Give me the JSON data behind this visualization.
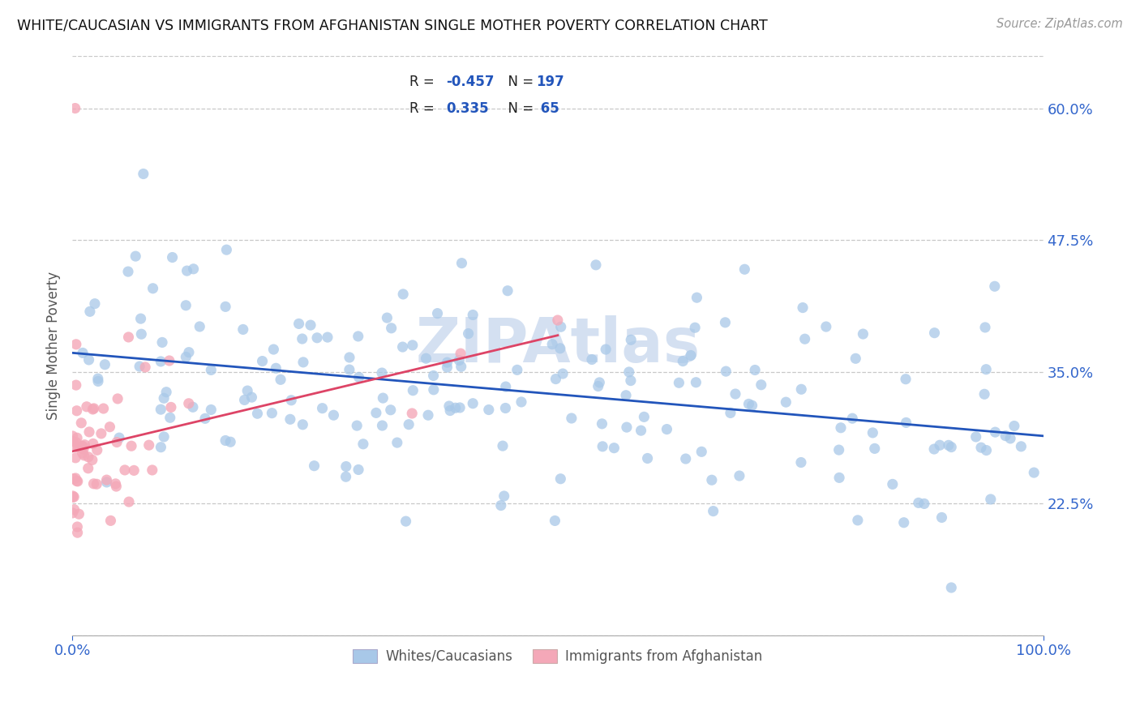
{
  "title": "WHITE/CAUCASIAN VS IMMIGRANTS FROM AFGHANISTAN SINGLE MOTHER POVERTY CORRELATION CHART",
  "source": "Source: ZipAtlas.com",
  "ylabel": "Single Mother Poverty",
  "xlim": [
    0.0,
    1.0
  ],
  "ylim": [
    0.1,
    0.65
  ],
  "yticks": [
    0.225,
    0.35,
    0.475,
    0.6
  ],
  "ytick_labels": [
    "22.5%",
    "35.0%",
    "47.5%",
    "60.0%"
  ],
  "xtick_labels": [
    "0.0%",
    "100.0%"
  ],
  "R_blue": -0.457,
  "N_blue": 197,
  "R_pink": 0.335,
  "N_pink": 65,
  "blue_color": "#a8c8e8",
  "pink_color": "#f4a8b8",
  "blue_line_color": "#2255bb",
  "pink_line_color": "#dd4466",
  "legend_blue_label": "Whites/Caucasians",
  "legend_pink_label": "Immigrants from Afghanistan",
  "background_color": "#ffffff",
  "grid_color": "#bbbbbb",
  "title_color": "#111111",
  "axis_label_color": "#3366cc",
  "watermark_color": "#d0ddf0",
  "source_color": "#999999"
}
